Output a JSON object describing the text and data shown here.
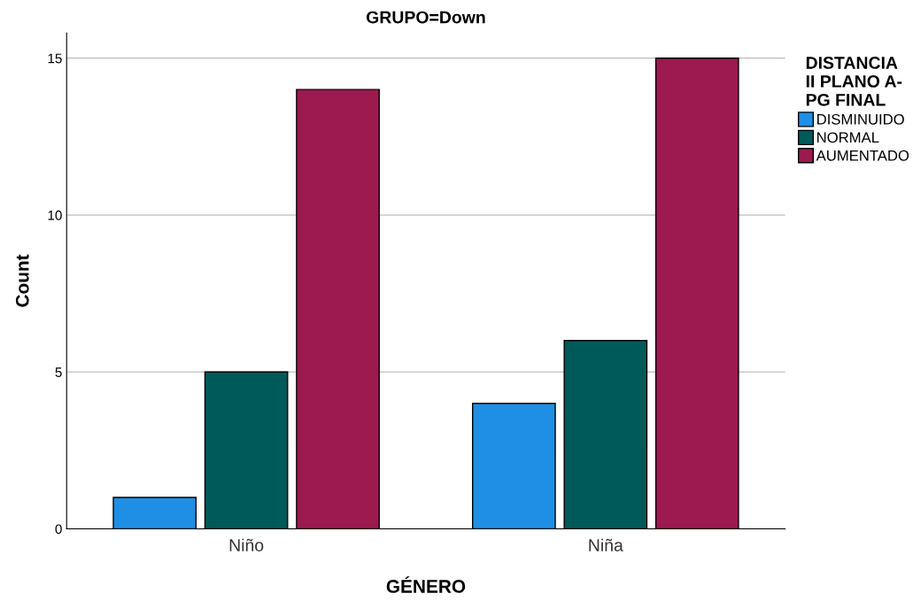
{
  "chart_data": {
    "type": "bar",
    "title": "GRUPO=Down",
    "xlabel": "GÉNERO",
    "ylabel": "Count",
    "legend_title": "DISTANCIA\nII PLANO A-\nPG FINAL",
    "categories": [
      "Niño",
      "Niña"
    ],
    "series": [
      {
        "name": "DISMINUIDO",
        "color": "#1f8fe5",
        "values": [
          1,
          4
        ]
      },
      {
        "name": "NORMAL",
        "color": "#005a5a",
        "values": [
          5,
          6
        ]
      },
      {
        "name": "AUMENTADO",
        "color": "#9c1a4e",
        "values": [
          14,
          15
        ]
      }
    ],
    "ylim": [
      0,
      15.8
    ],
    "yticks": [
      0,
      5,
      10,
      15
    ],
    "grid": "y",
    "legend": "right"
  }
}
